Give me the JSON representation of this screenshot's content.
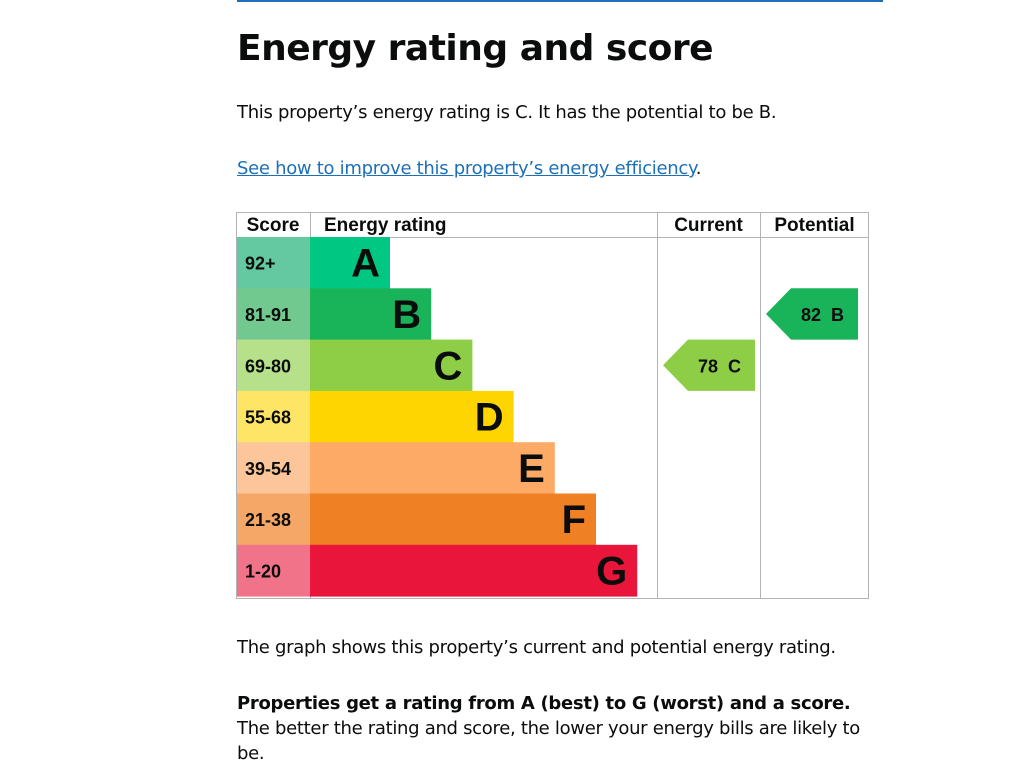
{
  "heading": "Energy rating and score",
  "intro": "This property’s energy rating is C. It has the potential to be B.",
  "improve_link": "See how to improve this property’s energy efficiency",
  "improve_suffix": ".",
  "graph_note": "The graph shows this property’s current and potential energy rating.",
  "rating_note_bold": "Properties get a rating from A (best) to G (worst) and a score.",
  "rating_note_rest": " The better the rating and score, the lower your energy bills are likely to be.",
  "colors": {
    "link": "#1d70b8",
    "A": "#00c781",
    "B": "#19b459",
    "C": "#8dce46",
    "D": "#ffd500",
    "E": "#fcaa65",
    "F": "#ef8023",
    "G": "#e9153b"
  },
  "chart_data": {
    "type": "bar",
    "headers": [
      "Score",
      "Energy rating",
      "Current",
      "Potential"
    ],
    "bands": [
      {
        "letter": "A",
        "score": "92+",
        "color": "#00c781",
        "score_bg": "#64c9a0"
      },
      {
        "letter": "B",
        "score": "81-91",
        "color": "#19b459",
        "score_bg": "#72c98f"
      },
      {
        "letter": "C",
        "score": "69-80",
        "color": "#8dce46",
        "score_bg": "#b6e08a"
      },
      {
        "letter": "D",
        "score": "55-68",
        "color": "#ffd500",
        "score_bg": "#ffe566"
      },
      {
        "letter": "E",
        "score": "39-54",
        "color": "#fcaa65",
        "score_bg": "#fcc69a"
      },
      {
        "letter": "F",
        "score": "21-38",
        "color": "#ef8023",
        "score_bg": "#f4a766"
      },
      {
        "letter": "G",
        "score": "1-20",
        "color": "#e9153b",
        "score_bg": "#f17389"
      }
    ],
    "current": {
      "score": 78,
      "band": "C",
      "label": "78  C",
      "color": "#8dce46"
    },
    "potential": {
      "score": 82,
      "band": "B",
      "label": "82  B",
      "color": "#19b459"
    }
  }
}
